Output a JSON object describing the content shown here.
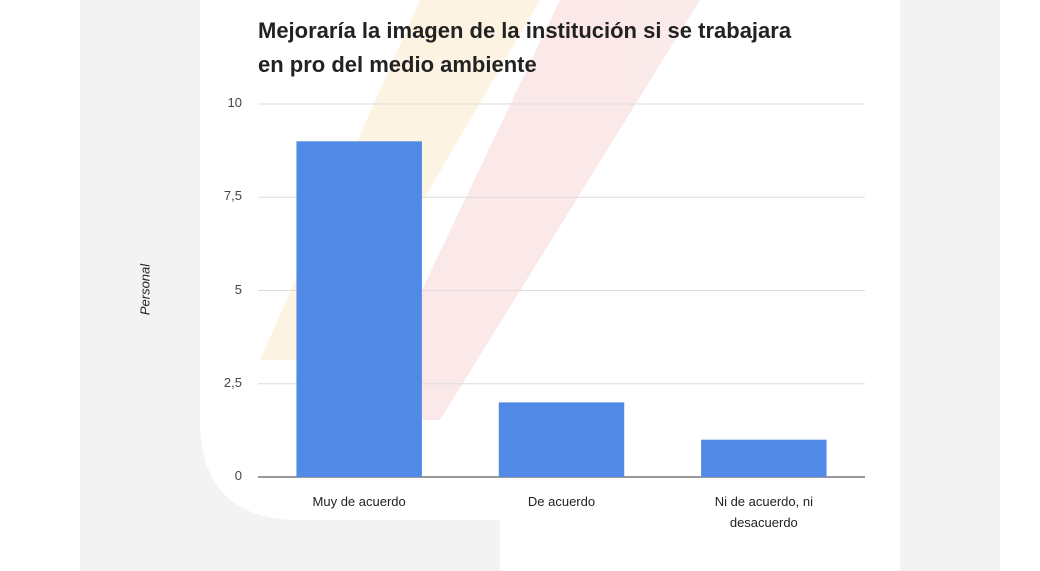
{
  "chart_data": {
    "type": "bar",
    "title": "Mejoraría la imagen de la institución si se trabajara en pro del medio ambiente",
    "y_label": "Personal",
    "categories": [
      "Muy de acuerdo",
      "De acuerdo",
      "Ni de acuerdo, ni desacuerdo"
    ],
    "values": [
      9,
      2,
      1
    ],
    "color": "#5089e6",
    "ylim": [
      0,
      10
    ],
    "yticks": [
      0,
      {
        "value": 2.5,
        "label": "2,5"
      },
      5,
      {
        "value": 7.5,
        "label": "7,5"
      },
      10
    ],
    "grid": true
  }
}
